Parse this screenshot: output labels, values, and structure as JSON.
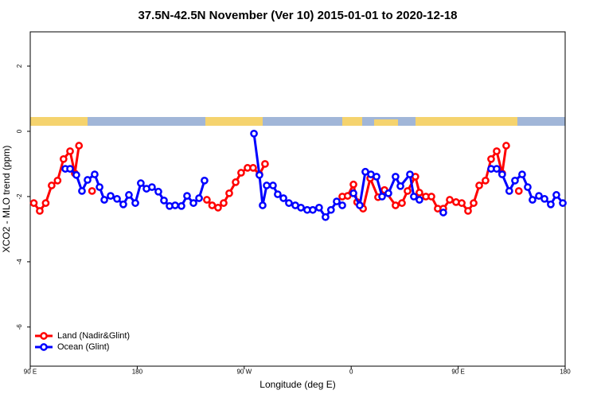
{
  "chart_data": {
    "type": "line",
    "title": "37.5N-42.5N November (Ver 10)   2015-01-01 to 2020-12-18",
    "x_label": "Longitude (deg E)",
    "y_label": "XCO2 - MLO trend (ppm)",
    "xlim": [
      90,
      540
    ],
    "ylim": [
      -7.2,
      3.05
    ],
    "xticks": [
      {
        "value": 90,
        "label": "90 E"
      },
      180,
      {
        "value": 270,
        "label": "90 W"
      },
      {
        "value": 360,
        "label": "0"
      },
      {
        "value": 450,
        "label": "90 E"
      },
      {
        "value": 540,
        "label": "180"
      }
    ],
    "yticks": [
      -6,
      -4,
      -2,
      0,
      2
    ],
    "legend": "bottom-left",
    "series": [
      {
        "name": "Land (Nadir&Glint)",
        "color": "#ff0000",
        "x": [
          93,
          98,
          103,
          108,
          113,
          118,
          123.5,
          127.5,
          131,
          null,
          142,
          null,
          238.6,
          243,
          248,
          252.7,
          257.4,
          262.8,
          267.4,
          272.8,
          277.5,
          282.8,
          287.5,
          null,
          352.5,
          357,
          361.9,
          365,
          370,
          376,
          382.6,
          388,
          397.3,
          402.7,
          407.4,
          414,
          417.4,
          422.8,
          427.5,
          432.8,
          437.5,
          442.9,
          448.2,
          453,
          458.3,
          463,
          467.7,
          473,
          477.7,
          482.4,
          487,
          490.4,
          null,
          501
        ],
        "values": [
          -2.2,
          -2.44,
          -2.2,
          -1.66,
          -1.51,
          -0.85,
          -0.61,
          -1.29,
          -0.44,
          null,
          -1.83,
          null,
          -2.1,
          -2.27,
          -2.34,
          -2.2,
          -1.9,
          -1.56,
          -1.27,
          -1.12,
          -1.12,
          -1.32,
          -1.0,
          null,
          -2.0,
          -1.98,
          -1.63,
          -2.17,
          -2.37,
          -1.44,
          -2.02,
          -1.8,
          -2.27,
          -2.2,
          -1.83,
          -1.39,
          -1.88,
          -2.0,
          -2.0,
          -2.37,
          -2.37,
          -2.1,
          -2.17,
          -2.2,
          -2.44,
          -2.2,
          -1.66,
          -1.51,
          -0.85,
          -0.61,
          -1.29,
          -0.44,
          null,
          -1.83
        ]
      },
      {
        "name": "Ocean (Glint)",
        "color": "#0000ff",
        "x": [
          119.5,
          123.5,
          128.8,
          133.5,
          138.2,
          144.2,
          148.3,
          152.3,
          157.6,
          163,
          168.3,
          173,
          178.4,
          183,
          187.8,
          192.4,
          197.8,
          202.5,
          207.2,
          211.9,
          217.2,
          221.9,
          227.3,
          232,
          236.6,
          null,
          278.2,
          282.8,
          285.5,
          288.9,
          294.2,
          298.2,
          303,
          307.6,
          313,
          317.7,
          323,
          327.7,
          333,
          338.4,
          343,
          347.8,
          352.5,
          null,
          361.9,
          367.2,
          371.9,
          376.6,
          381.3,
          386,
          391.3,
          397.3,
          401.4,
          409.4,
          412.7,
          417.4,
          null,
          437.5,
          null,
          477.7,
          482.4,
          487,
          493,
          497.8,
          503.8,
          508.5,
          512.5,
          517.9,
          522.6,
          527.9,
          532.6,
          538
        ],
        "values": [
          -1.15,
          -1.15,
          -1.34,
          -1.83,
          -1.49,
          -1.32,
          -1.71,
          -2.1,
          -1.98,
          -2.07,
          -2.24,
          -1.95,
          -2.2,
          -1.59,
          -1.76,
          -1.71,
          -1.85,
          -2.12,
          -2.29,
          -2.27,
          -2.29,
          -1.98,
          -2.2,
          -2.05,
          -1.51,
          null,
          -0.07,
          -1.34,
          -2.27,
          -1.66,
          -1.66,
          -1.93,
          -2.05,
          -2.2,
          -2.27,
          -2.34,
          -2.41,
          -2.41,
          -2.34,
          -2.63,
          -2.41,
          -2.15,
          -2.27,
          null,
          -1.9,
          -2.27,
          -1.24,
          -1.32,
          -1.39,
          -2.0,
          -1.9,
          -1.39,
          -1.68,
          -1.32,
          -2.0,
          -2.1,
          null,
          -2.49,
          null,
          -1.15,
          -1.15,
          -1.32,
          -1.83,
          -1.51,
          -1.32,
          -1.71,
          -2.1,
          -1.98,
          -2.07,
          -2.24,
          -1.95,
          -2.2
        ]
      }
    ]
  }
}
